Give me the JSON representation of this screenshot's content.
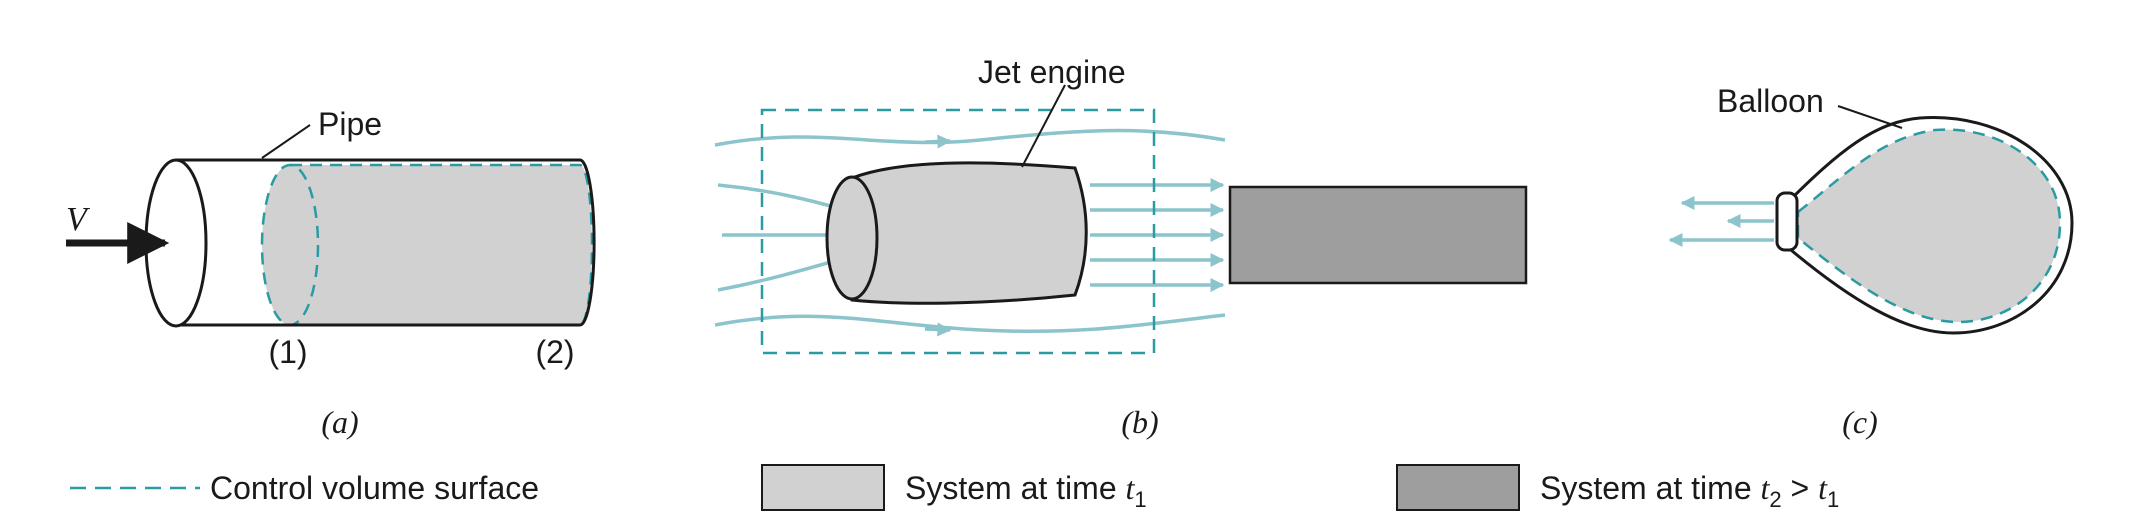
{
  "colors": {
    "outline": "#1a1a1a",
    "control_volume": "#2a9aa3",
    "flow": "#8cc4cc",
    "system_t1": "#d1d1d1",
    "system_t2": "#9e9e9e"
  },
  "panel_a": {
    "velocity": "V",
    "pipe": "Pipe",
    "section_1": "(1)",
    "section_2": "(2)",
    "caption": "(a)"
  },
  "panel_b": {
    "jet_engine": "Jet engine",
    "caption": "(b)"
  },
  "panel_c": {
    "balloon": "Balloon",
    "caption": "(c)"
  },
  "legend": {
    "control_volume": "Control volume surface",
    "system_t1_prefix": "System at time ",
    "system_t1_var": "t",
    "system_t1_sub": "1",
    "system_t2_prefix": "System at time ",
    "system_t2_var": "t",
    "system_t2_sub": "2",
    "system_t2_gt": " > ",
    "system_t2_var2": "t",
    "system_t2_sub2": "1"
  }
}
